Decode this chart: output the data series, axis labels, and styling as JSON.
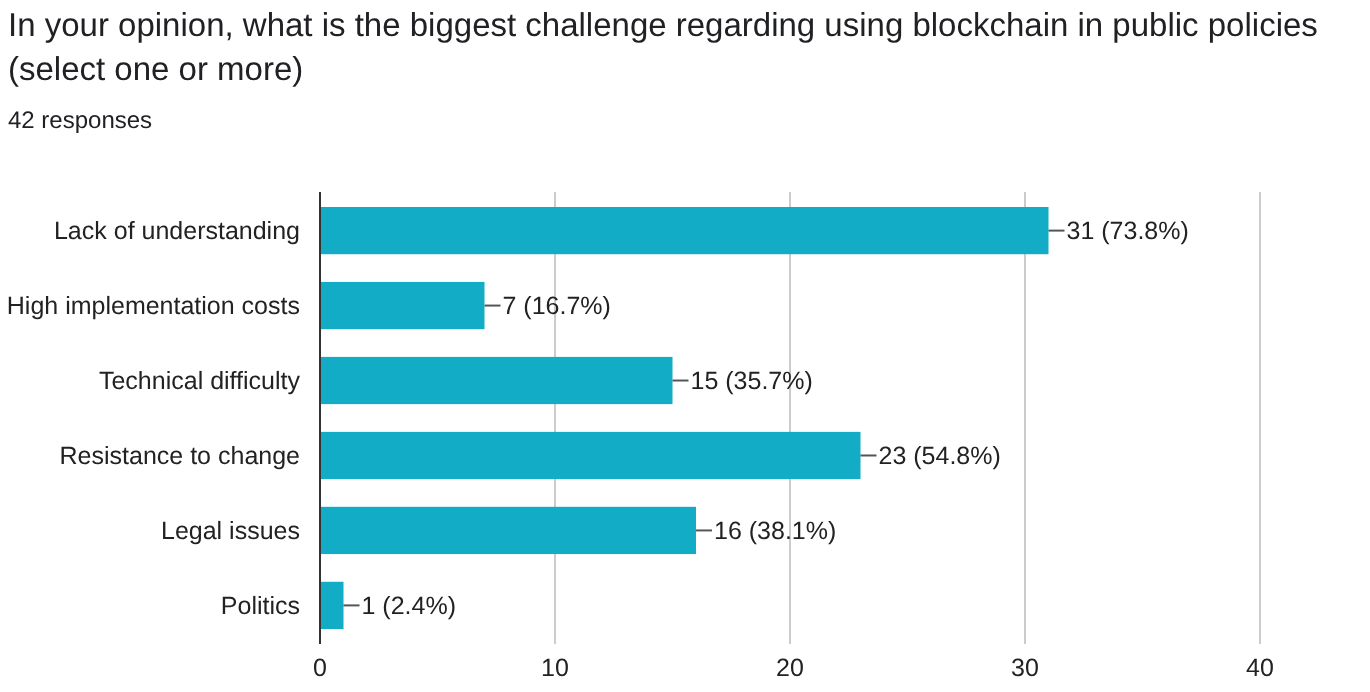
{
  "chart_data": {
    "type": "bar",
    "orientation": "horizontal",
    "title": "In your opinion, what is the biggest challenge regarding using blockchain in public policies (select one or more)",
    "subtitle": "42 responses",
    "categories": [
      "Lack of understanding",
      "High implementation costs",
      "Technical difficulty",
      "Resistance to change",
      "Legal issues",
      "Politics"
    ],
    "values": [
      31,
      7,
      15,
      23,
      16,
      1
    ],
    "value_labels": [
      "31 (73.8%)",
      "7 (16.7%)",
      "15 (35.7%)",
      "23 (54.8%)",
      "16 (38.1%)",
      "1 (2.4%)"
    ],
    "color": "#12acc6",
    "xlim": [
      0,
      40
    ],
    "xticks": [
      0,
      10,
      20,
      30,
      40
    ],
    "grid": "x"
  }
}
